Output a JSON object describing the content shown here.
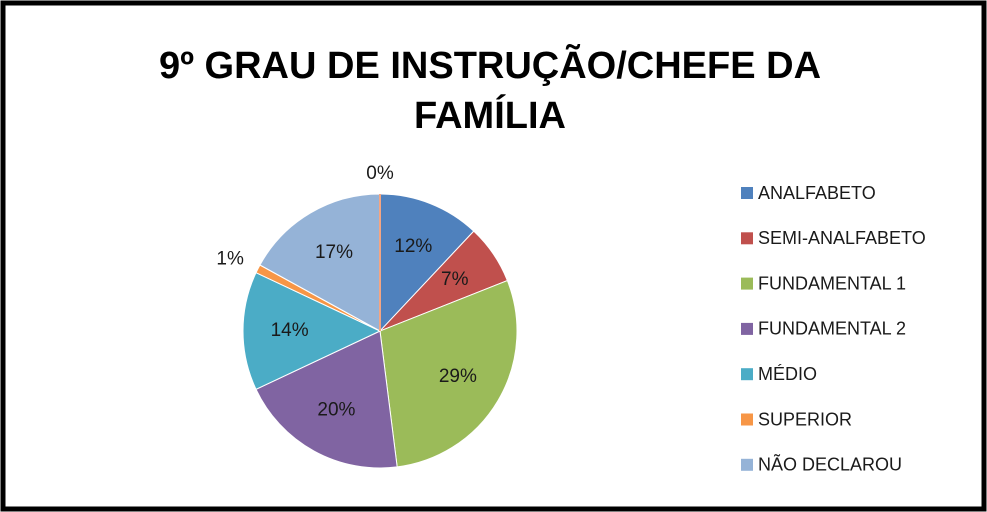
{
  "chart_data": {
    "type": "pie",
    "title": "9º GRAU DE INSTRUÇÃO/CHEFE DA FAMÍLIA",
    "categories": [
      "ANALFABETO",
      "SEMI-ANALFABETO",
      "FUNDAMENTAL 1",
      "FUNDAMENTAL 2",
      "MÉDIO",
      "SUPERIOR",
      "NÃO DECLAROU",
      null
    ],
    "values": [
      12,
      7,
      29,
      20,
      14,
      1,
      17,
      0
    ],
    "value_labels": [
      "12%",
      "7%",
      "29%",
      "20%",
      "14%",
      "1%",
      "17%",
      "0%"
    ],
    "colors": [
      "#4f81bd",
      "#c0504d",
      "#9bbb59",
      "#8064a2",
      "#4bacc6",
      "#f79646",
      "#95b3d7",
      "#f4a582"
    ]
  }
}
